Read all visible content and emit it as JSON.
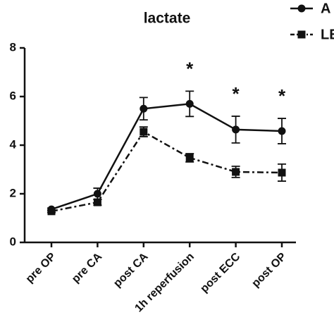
{
  "chart_data": {
    "type": "line",
    "title": "lactate",
    "categories": [
      "pre OP",
      "pre CA",
      "post CA",
      "1h reperfusion",
      "post ECC",
      "post OP"
    ],
    "series": [
      {
        "name": "A",
        "color": "#111111",
        "marker": "circle",
        "dash": "solid",
        "values": [
          1.36,
          2.0,
          5.5,
          5.7,
          4.64,
          4.58
        ],
        "errors": [
          0.05,
          0.23,
          0.46,
          0.52,
          0.55,
          0.52
        ]
      },
      {
        "name": "LE",
        "color": "#111111",
        "marker": "square",
        "dash": "dashdot",
        "values": [
          1.28,
          1.65,
          4.55,
          3.48,
          2.9,
          2.87
        ],
        "errors": [
          0.05,
          0.12,
          0.2,
          0.17,
          0.23,
          0.35
        ]
      }
    ],
    "annotations": [
      {
        "text": "*",
        "category": "1h reperfusion"
      },
      {
        "text": "*",
        "category": "post ECC"
      },
      {
        "text": "*",
        "category": "post OP"
      }
    ],
    "ylim": [
      0,
      8
    ],
    "yticks": [
      0,
      2,
      4,
      6,
      8
    ],
    "grid": false
  }
}
